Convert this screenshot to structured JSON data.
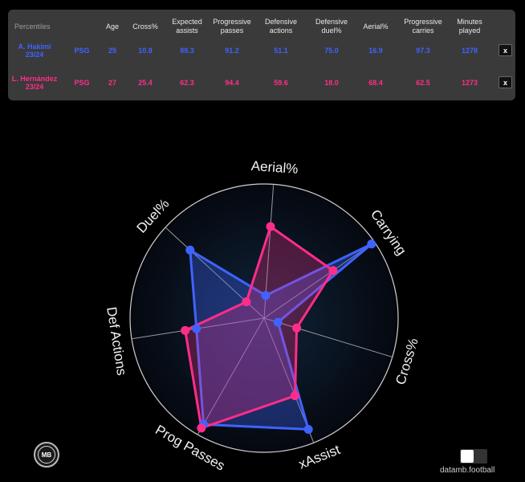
{
  "table": {
    "headers": [
      "Percentiles",
      "",
      "Age",
      "Cross%",
      "Expected assists",
      "Progressive passes",
      "Defensive actions",
      "Defensive duel%",
      "Aerial%",
      "Progressive carries",
      "Minutes played"
    ],
    "close_label": "x",
    "rows": [
      {
        "player": "A. Hakimi 23/24",
        "team": "PSG",
        "age": "25",
        "cross": "10.8",
        "xa": "89.3",
        "prog_passes": "91.2",
        "def_actions": "51.1",
        "def_duel": "75.0",
        "aerial": "16.9",
        "prog_carries": "97.3",
        "minutes": "1278"
      },
      {
        "player": "L. Hernández 23/24",
        "team": "PSG",
        "age": "27",
        "cross": "25.4",
        "xa": "62.3",
        "prog_passes": "94.4",
        "def_actions": "59.6",
        "def_duel": "18.0",
        "aerial": "68.4",
        "prog_carries": "62.5",
        "minutes": "1273"
      }
    ]
  },
  "chart_data": {
    "type": "radar",
    "axes": [
      "Aerial%",
      "Carrying",
      "Cross%",
      "xAssist",
      "Prog Passes",
      "Def Actions",
      "Duel%"
    ],
    "range": [
      0,
      100
    ],
    "series": [
      {
        "name": "A. Hakimi 23/24",
        "color": "#3f63ff",
        "values": [
          16.9,
          97.3,
          10.8,
          89.3,
          91.2,
          51.1,
          75.0
        ]
      },
      {
        "name": "L. Hernández 23/24",
        "color": "#ff2d8a",
        "values": [
          68.4,
          62.5,
          25.4,
          62.3,
          94.4,
          59.6,
          18.0
        ]
      }
    ]
  },
  "footer": {
    "logo_text": "MB",
    "brand": "datamb.football"
  }
}
